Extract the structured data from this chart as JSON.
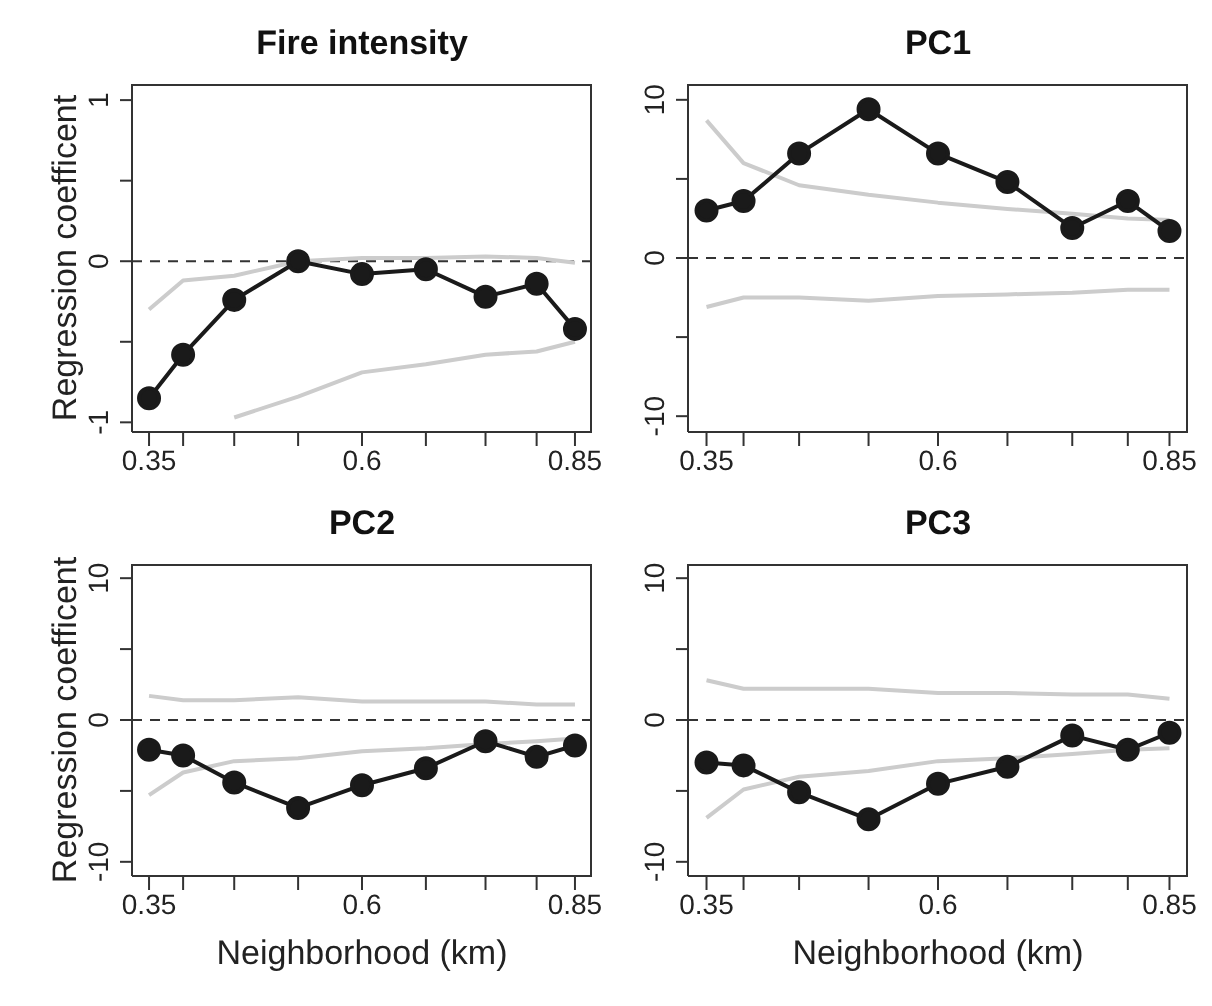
{
  "chart_data": [
    {
      "type": "line",
      "title": "Fire intensity",
      "ylabel": "Regression coefficent",
      "x": [
        0.35,
        0.39,
        0.45,
        0.525,
        0.6,
        0.675,
        0.745,
        0.805,
        0.85
      ],
      "xlim": [
        0.33,
        0.87
      ],
      "xticks": [
        0.35,
        {
          "value": 0.39,
          "label": null
        },
        {
          "value": 0.45,
          "label": null
        },
        {
          "value": 0.525,
          "label": null
        },
        0.6,
        {
          "value": 0.675,
          "label": null
        },
        {
          "value": 0.745,
          "label": null
        },
        {
          "value": 0.805,
          "label": null
        },
        0.85
      ],
      "ylim": [
        -1.06,
        1.1
      ],
      "yticks": [
        -1,
        {
          "value": -0.5,
          "label": null
        },
        0,
        {
          "value": 0.5,
          "label": null
        },
        1
      ],
      "grid": false,
      "marker": "circle",
      "line_style": "solid",
      "series": [
        {
          "color": "#cccccc",
          "marker": "none",
          "values": [
            -0.3,
            -0.12,
            -0.09,
            0,
            0.02,
            0.02,
            0.03,
            0.02,
            -0.01
          ]
        },
        {
          "color": "#cccccc",
          "marker": "none",
          "values": [
            null,
            null,
            -0.97,
            -0.84,
            -0.69,
            -0.64,
            -0.58,
            -0.56,
            -0.5
          ]
        },
        {
          "color": "#1a1a1a",
          "values": [
            -0.85,
            -0.58,
            -0.24,
            0,
            -0.08,
            -0.05,
            -0.22,
            -0.14,
            -0.42
          ]
        }
      ],
      "ref_lines": [
        {
          "axis": "y",
          "value": 0,
          "color": "#333333",
          "line_style": "dashed"
        }
      ]
    },
    {
      "type": "line",
      "title": "PC1",
      "x": [
        0.35,
        0.39,
        0.45,
        0.525,
        0.6,
        0.675,
        0.745,
        0.805,
        0.85
      ],
      "xlim": [
        0.33,
        0.87
      ],
      "xticks": [
        0.35,
        {
          "value": 0.39,
          "label": null
        },
        {
          "value": 0.45,
          "label": null
        },
        {
          "value": 0.525,
          "label": null
        },
        0.6,
        {
          "value": 0.675,
          "label": null
        },
        {
          "value": 0.745,
          "label": null
        },
        {
          "value": 0.805,
          "label": null
        },
        0.85
      ],
      "ylim": [
        -11,
        11
      ],
      "yticks": [
        -10,
        {
          "value": -5,
          "label": null
        },
        0,
        {
          "value": 5,
          "label": null
        },
        10
      ],
      "grid": false,
      "marker": "circle",
      "line_style": "solid",
      "series": [
        {
          "color": "#cccccc",
          "marker": "none",
          "values": [
            8.7,
            6.0,
            4.6,
            4.0,
            3.5,
            3.1,
            2.8,
            2.5,
            2.4
          ]
        },
        {
          "color": "#cccccc",
          "marker": "none",
          "values": [
            -3.1,
            -2.5,
            -2.5,
            -2.7,
            -2.4,
            -2.3,
            -2.2,
            -2.0,
            -2.0
          ]
        },
        {
          "color": "#1a1a1a",
          "values": [
            3.0,
            3.6,
            6.6,
            9.4,
            6.6,
            4.8,
            1.9,
            3.6,
            1.7
          ]
        }
      ],
      "ref_lines": [
        {
          "axis": "y",
          "value": 0,
          "color": "#333333",
          "line_style": "dashed"
        }
      ]
    },
    {
      "type": "line",
      "title": "PC2",
      "xlabel": "Neighborhood (km)",
      "ylabel": "Regression coefficent",
      "x": [
        0.35,
        0.39,
        0.45,
        0.525,
        0.6,
        0.675,
        0.745,
        0.805,
        0.85
      ],
      "xlim": [
        0.33,
        0.87
      ],
      "xticks": [
        0.35,
        {
          "value": 0.39,
          "label": null
        },
        {
          "value": 0.45,
          "label": null
        },
        {
          "value": 0.525,
          "label": null
        },
        0.6,
        {
          "value": 0.675,
          "label": null
        },
        {
          "value": 0.745,
          "label": null
        },
        {
          "value": 0.805,
          "label": null
        },
        0.85
      ],
      "ylim": [
        -11,
        11
      ],
      "yticks": [
        -10,
        {
          "value": -5,
          "label": null
        },
        0,
        {
          "value": 5,
          "label": null
        },
        10
      ],
      "grid": false,
      "marker": "circle",
      "line_style": "solid",
      "series": [
        {
          "color": "#cccccc",
          "marker": "none",
          "values": [
            1.7,
            1.4,
            1.4,
            1.6,
            1.3,
            1.3,
            1.3,
            1.1,
            1.1
          ]
        },
        {
          "color": "#cccccc",
          "marker": "none",
          "values": [
            -5.3,
            -3.7,
            -2.9,
            -2.7,
            -2.2,
            -2.0,
            -1.7,
            -1.5,
            -1.3
          ]
        },
        {
          "color": "#1a1a1a",
          "values": [
            -2.1,
            -2.5,
            -4.4,
            -6.2,
            -4.6,
            -3.4,
            -1.5,
            -2.6,
            -1.8
          ]
        }
      ],
      "ref_lines": [
        {
          "axis": "y",
          "value": 0,
          "color": "#333333",
          "line_style": "dashed"
        }
      ]
    },
    {
      "type": "line",
      "title": "PC3",
      "xlabel": "Neighborhood (km)",
      "x": [
        0.35,
        0.39,
        0.45,
        0.525,
        0.6,
        0.675,
        0.745,
        0.805,
        0.85
      ],
      "xlim": [
        0.33,
        0.87
      ],
      "xticks": [
        0.35,
        {
          "value": 0.39,
          "label": null
        },
        {
          "value": 0.45,
          "label": null
        },
        {
          "value": 0.525,
          "label": null
        },
        0.6,
        {
          "value": 0.675,
          "label": null
        },
        {
          "value": 0.745,
          "label": null
        },
        {
          "value": 0.805,
          "label": null
        },
        0.85
      ],
      "ylim": [
        -11,
        11
      ],
      "yticks": [
        -10,
        {
          "value": -5,
          "label": null
        },
        0,
        {
          "value": 5,
          "label": null
        },
        10
      ],
      "grid": false,
      "marker": "circle",
      "line_style": "solid",
      "series": [
        {
          "color": "#cccccc",
          "marker": "none",
          "values": [
            2.8,
            2.2,
            2.2,
            2.2,
            1.9,
            1.9,
            1.8,
            1.8,
            1.5
          ]
        },
        {
          "color": "#cccccc",
          "marker": "none",
          "values": [
            -6.9,
            -4.9,
            -4.0,
            -3.6,
            -2.9,
            -2.7,
            -2.4,
            -2.1,
            -2.0
          ]
        },
        {
          "color": "#1a1a1a",
          "values": [
            -3.0,
            -3.2,
            -5.1,
            -7.0,
            -4.5,
            -3.3,
            -1.1,
            -2.1,
            -0.9
          ]
        }
      ],
      "ref_lines": [
        {
          "axis": "y",
          "value": 0,
          "color": "#333333",
          "line_style": "dashed"
        }
      ]
    }
  ]
}
